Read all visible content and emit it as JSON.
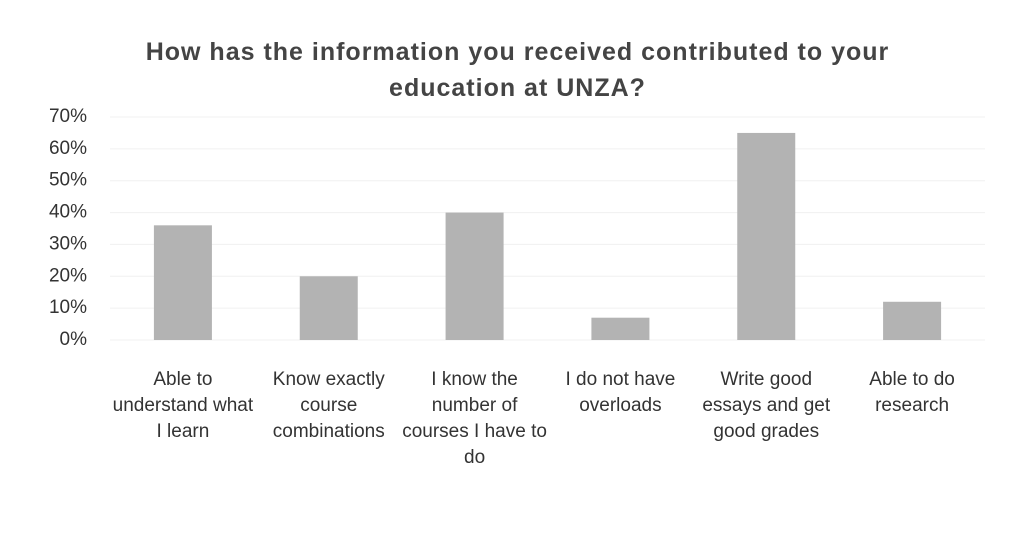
{
  "chart_data": {
    "type": "bar",
    "title": "How has the information you received contributed to your education at UNZA?",
    "categories": [
      "Able to understand what I learn",
      "Know exactly course combinations",
      "I know the number of courses I have to do",
      "I do not have overloads",
      "Write good essays and get good grades",
      "Able to do research"
    ],
    "values": [
      36,
      20,
      40,
      7,
      65,
      12
    ],
    "color": "#b3b3b3",
    "ylim": [
      0,
      70
    ],
    "yticks": [
      {
        "value": 0,
        "label": "0%"
      },
      {
        "value": 10,
        "label": "10%"
      },
      {
        "value": 20,
        "label": "20%"
      },
      {
        "value": 30,
        "label": "30%"
      },
      {
        "value": 40,
        "label": "40%"
      },
      {
        "value": 50,
        "label": "50%"
      },
      {
        "value": 60,
        "label": "60%"
      },
      {
        "value": 70,
        "label": "70%"
      }
    ],
    "grid": true
  }
}
